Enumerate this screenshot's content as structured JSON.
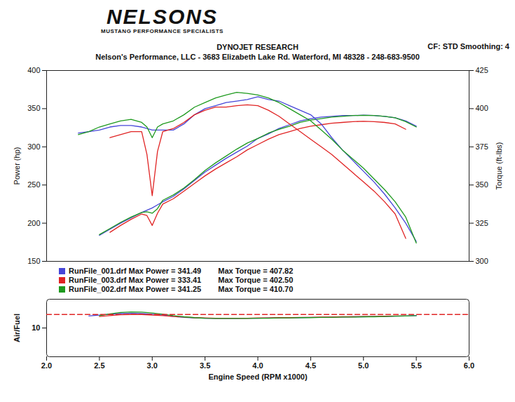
{
  "header": {
    "logo": "NELSONS",
    "tagline": "MUSTANG PERFORMANCE SPECIALISTS"
  },
  "chart_data": [
    {
      "type": "line",
      "title": "DYNOJET RESEARCH",
      "subtitle": "Nelson's Performance, LLC - 3683 Elizabeth Lake Rd. Waterford, MI 48328 - 248-683-9500",
      "annotations": [
        "CF: STD  Smoothing: 4"
      ],
      "ylabel": "Power (hp)",
      "y2label": "Torque (ft-lbs)",
      "xlim": [
        2,
        6
      ],
      "ylim": [
        150,
        400
      ],
      "yticks": [
        150,
        200,
        250,
        300,
        350,
        400
      ],
      "y2lim": [
        300,
        425
      ],
      "y2ticks": [
        300,
        325,
        350,
        375,
        400,
        425
      ],
      "tick_labels": "y",
      "grid": false,
      "legend": "bottom",
      "x": [
        2.3,
        2.4,
        2.5,
        2.6,
        2.7,
        2.8,
        2.9,
        2.95,
        3.0,
        3.05,
        3.1,
        3.2,
        3.3,
        3.4,
        3.5,
        3.6,
        3.7,
        3.8,
        3.9,
        4.0,
        4.1,
        4.2,
        4.3,
        4.4,
        4.5,
        4.6,
        4.7,
        4.8,
        4.9,
        5.0,
        5.1,
        5.2,
        5.3,
        5.4,
        5.5
      ],
      "series": [
        {
          "name": "RunFile_001.drf Max Power = 341.49",
          "color": "#4646d8",
          "values": [
            null,
            null,
            184,
            192,
            200,
            207,
            214,
            217,
            220,
            224,
            228,
            235,
            245,
            256,
            267,
            276,
            285,
            293,
            301,
            311,
            317,
            324,
            329,
            334,
            337,
            339,
            340,
            341,
            341,
            341.49,
            341,
            340,
            338,
            334,
            327
          ]
        },
        {
          "name": "RunFile_003.drf Max Power = 333.41",
          "color": "#e02424",
          "values": [
            null,
            null,
            null,
            188,
            197,
            205,
            212,
            210,
            197,
            213,
            225,
            232,
            242,
            252,
            262,
            271,
            279,
            287,
            296,
            303,
            310,
            316,
            320,
            324,
            327,
            329,
            331,
            332,
            333,
            333.41,
            333,
            332,
            330,
            323,
            null
          ]
        },
        {
          "name": "RunFile_002.drf Max Power = 341.25",
          "color": "#1e9a1e",
          "values": [
            null,
            null,
            185,
            193,
            201,
            208,
            214,
            215,
            213,
            219,
            230,
            237,
            246,
            257,
            269,
            279,
            288,
            297,
            305,
            311,
            318,
            323,
            327,
            332,
            335,
            337,
            339,
            340,
            341,
            341.25,
            341,
            340,
            338,
            333,
            326
          ]
        },
        {
          "name": "Max Torque = 407.82",
          "color": "#4646d8",
          "axis": "y2",
          "values": [
            384,
            385,
            386,
            388,
            389,
            389,
            388,
            387,
            386,
            386,
            386,
            386,
            390,
            396,
            400,
            402,
            404,
            405,
            406,
            407.82,
            406,
            405,
            402,
            399,
            396,
            390,
            381,
            373,
            366,
            359,
            352,
            344,
            335,
            325,
            313
          ]
        },
        {
          "name": "Max Torque = 402.50",
          "color": "#e02424",
          "axis": "y2",
          "values": [
            null,
            null,
            null,
            381,
            383,
            385,
            385,
            370,
            343,
            372,
            385,
            387,
            391,
            396,
            399,
            401,
            401,
            402,
            402.5,
            402,
            399,
            395,
            390,
            385,
            380,
            375,
            370,
            364,
            358,
            352,
            346,
            339,
            331,
            315,
            null
          ]
        },
        {
          "name": "Max Torque = 410.70",
          "color": "#1e9a1e",
          "axis": "y2",
          "values": [
            383,
            385,
            388,
            390,
            392,
            393,
            391,
            388,
            381,
            388,
            390,
            392,
            396,
            401,
            404,
            407,
            409,
            410.7,
            410,
            409,
            407,
            404,
            400,
            396,
            392,
            386,
            380,
            373,
            367,
            361,
            354,
            347,
            339,
            329,
            312
          ]
        }
      ]
    },
    {
      "type": "line",
      "xlabel": "Engine Speed (RPM x1000)",
      "ylabel": "Air/Fuel",
      "xlim": [
        2,
        6
      ],
      "xticks": [
        {
          "value": 2,
          "label": "2.0"
        },
        2.5,
        {
          "value": 3,
          "label": "3.0"
        },
        3.5,
        {
          "value": 4,
          "label": "4.0"
        },
        4.5,
        {
          "value": 5,
          "label": "5.0"
        },
        5.5,
        {
          "value": 6,
          "label": "6.0"
        }
      ],
      "ylim": [
        0,
        20
      ],
      "yticks": [
        10
      ],
      "grid": false,
      "x": [
        2.4,
        2.5,
        2.6,
        2.7,
        2.8,
        2.9,
        3.0,
        3.1,
        3.2,
        3.3,
        3.4,
        3.5,
        3.6,
        3.7,
        3.8,
        3.9,
        4.0,
        4.1,
        4.2,
        4.3,
        4.4,
        4.5,
        4.6,
        4.7,
        4.8,
        4.9,
        5.0,
        5.1,
        5.2,
        5.3,
        5.4,
        5.5
      ],
      "series": [
        {
          "color": "#4646d8",
          "values": [
            14.2,
            14.5,
            14.8,
            15.0,
            15.1,
            15.0,
            14.8,
            14.5,
            14.0,
            13.7,
            13.5,
            13.4,
            13.3,
            13.3,
            13.3,
            13.4,
            13.4,
            13.5,
            13.5,
            13.6,
            13.6,
            13.7,
            13.7,
            13.8,
            13.8,
            13.9,
            13.9,
            14.0,
            14.0,
            14.1,
            14.2,
            14.3
          ]
        },
        {
          "color": "#e02424",
          "values": [
            null,
            14.0,
            14.3,
            14.6,
            14.7,
            14.7,
            14.5,
            14.3,
            14.0,
            13.8,
            13.6,
            13.5,
            13.4,
            13.4,
            13.4,
            13.4,
            13.5,
            13.5,
            13.6,
            13.6,
            13.7,
            13.7,
            13.8,
            13.8,
            13.9,
            13.9,
            14.0,
            14.0,
            14.1,
            14.2,
            14.2,
            null
          ]
        },
        {
          "color": "#1e9a1e",
          "values": [
            null,
            14.3,
            14.9,
            15.4,
            15.6,
            15.5,
            15.2,
            14.8,
            14.3,
            13.9,
            13.6,
            13.4,
            13.3,
            13.3,
            13.3,
            13.3,
            13.4,
            13.4,
            13.5,
            13.5,
            13.6,
            13.6,
            13.7,
            13.7,
            13.8,
            13.8,
            13.9,
            13.9,
            14.0,
            14.1,
            14.2,
            14.3
          ]
        },
        {
          "color": "#e02424",
          "line_style": "dashed",
          "x": [
            2.0,
            6.0
          ],
          "values": [
            14.7,
            14.7
          ]
        }
      ]
    }
  ]
}
